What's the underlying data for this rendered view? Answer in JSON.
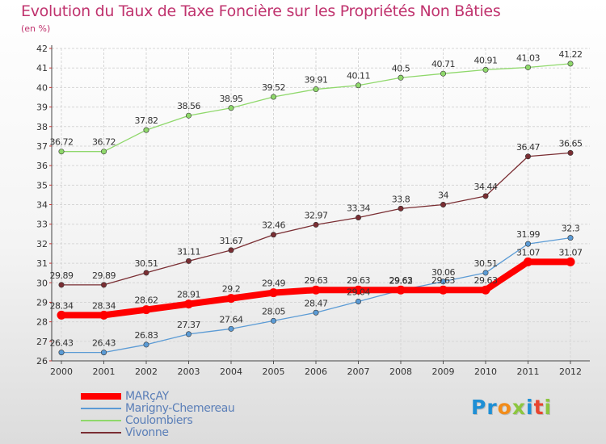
{
  "title": "Evolution du Taux de Taxe Foncière sur les Propriétés Non Bâties",
  "unit_label": "(en %)",
  "logo": {
    "text": "Proxiti",
    "letters": [
      {
        "ch": "P",
        "color": "#1e8fd5"
      },
      {
        "ch": "r",
        "color": "#1e8fd5"
      },
      {
        "ch": "o",
        "color": "#f28c1a"
      },
      {
        "ch": "x",
        "color": "#8cc63f"
      },
      {
        "ch": "i",
        "color": "#1e8fd5"
      },
      {
        "ch": "t",
        "color": "#e8452f"
      },
      {
        "ch": "i",
        "color": "#8cc63f"
      }
    ]
  },
  "chart_data": {
    "type": "line",
    "title": "Evolution du Taux de Taxe Foncière sur les Propriétés Non Bâties",
    "ylabel": "(en %)",
    "xlabel": "",
    "x": [
      "2000",
      "2001",
      "2002",
      "2003",
      "2004",
      "2005",
      "2006",
      "2007",
      "2008",
      "2009",
      "2010",
      "2011",
      "2012"
    ],
    "ylim": [
      26,
      42
    ],
    "yticks": [
      26,
      27,
      28,
      29,
      30,
      31,
      32,
      33,
      34,
      35,
      36,
      37,
      38,
      39,
      40,
      41,
      42
    ],
    "grid": true,
    "legend_position": "bottom-left",
    "series": [
      {
        "name": "MARçAY",
        "color": "#ff0000",
        "values": [
          28.34,
          28.34,
          28.62,
          28.91,
          29.2,
          29.49,
          29.63,
          29.63,
          29.63,
          29.63,
          29.63,
          31.07,
          31.07
        ],
        "labels": [
          "28.34",
          "28.34",
          "28.62",
          "28.91",
          "29.2",
          "29.49",
          "29.63",
          "29.63",
          "29.63",
          "29.63",
          "29.63",
          "31.07",
          "31.07"
        ]
      },
      {
        "name": "Marigny-Chemereau",
        "color": "#5b9bd5",
        "values": [
          26.43,
          26.43,
          26.83,
          27.37,
          27.64,
          28.05,
          28.47,
          29.04,
          29.62,
          30.06,
          30.51,
          31.99,
          32.3
        ],
        "labels": [
          "26.43",
          "26.43",
          "26.83",
          "27.37",
          "27.64",
          "28.05",
          "28.47",
          "29.04",
          "29.62",
          "30.06",
          "30.51",
          "31.99",
          "32.3"
        ]
      },
      {
        "name": "Coulombiers",
        "color": "#8fd86b",
        "values": [
          36.72,
          36.72,
          37.82,
          38.56,
          38.95,
          39.52,
          39.91,
          40.11,
          40.5,
          40.71,
          40.91,
          41.03,
          41.22
        ],
        "labels": [
          "36.72",
          "36.72",
          "37.82",
          "38.56",
          "38.95",
          "39.52",
          "39.91",
          "40.11",
          "40.5",
          "40.71",
          "40.91",
          "41.03",
          "41.22"
        ]
      },
      {
        "name": "Vivonne",
        "color": "#7a2e33",
        "values": [
          29.89,
          29.89,
          30.51,
          31.11,
          31.67,
          32.46,
          32.97,
          33.34,
          33.8,
          34,
          34.44,
          36.47,
          36.65
        ],
        "labels": [
          "29.89",
          "29.89",
          "30.51",
          "31.11",
          "31.67",
          "32.46",
          "32.97",
          "33.34",
          "33.8",
          "34",
          "34.44",
          "36.47",
          "36.65"
        ]
      }
    ]
  }
}
